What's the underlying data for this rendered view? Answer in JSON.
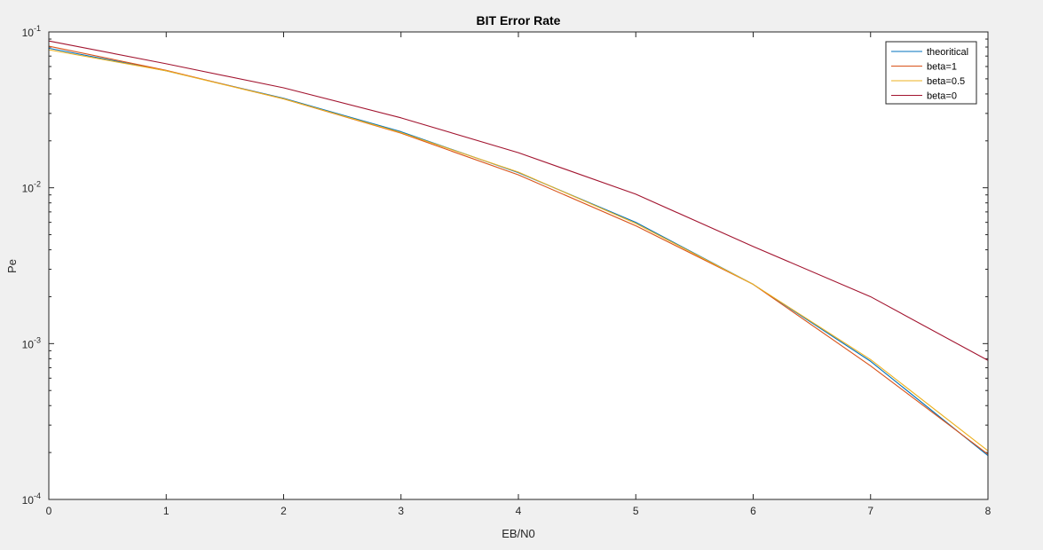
{
  "chart_data": {
    "type": "line",
    "title": "BIT Error Rate",
    "xlabel": "EB/N0",
    "ylabel": "Pe",
    "xlim": [
      0,
      8
    ],
    "ylim": [
      0.0001,
      0.1
    ],
    "yscale": "log",
    "x": [
      0,
      1,
      2,
      3,
      4,
      5,
      6,
      7,
      8
    ],
    "xticks": [
      "0",
      "1",
      "2",
      "3",
      "4",
      "5",
      "6",
      "7",
      "8"
    ],
    "yticks": [
      {
        "base": "10",
        "exp": "-4",
        "value": 0.0001
      },
      {
        "base": "10",
        "exp": "-3",
        "value": 0.001
      },
      {
        "base": "10",
        "exp": "-2",
        "value": 0.01
      },
      {
        "base": "10",
        "exp": "-1",
        "value": 0.1
      }
    ],
    "legend_position": "top-right",
    "series": [
      {
        "name": "theoritical",
        "color": "#0072bd",
        "values": [
          0.0786,
          0.0563,
          0.0375,
          0.0229,
          0.0125,
          0.006,
          0.0024,
          0.00077,
          0.000191
        ]
      },
      {
        "name": "beta=1",
        "color": "#d95319",
        "values": [
          0.081,
          0.0567,
          0.0372,
          0.0224,
          0.0121,
          0.0057,
          0.0024,
          0.00072,
          0.000195
        ]
      },
      {
        "name": "beta=0.5",
        "color": "#edb120",
        "values": [
          0.0768,
          0.0563,
          0.0372,
          0.0226,
          0.0126,
          0.0059,
          0.0024,
          0.00079,
          0.000205
        ]
      },
      {
        "name": "beta=0",
        "color": "#a2142f",
        "values": [
          0.0875,
          0.0625,
          0.0438,
          0.0281,
          0.0168,
          0.0091,
          0.0042,
          0.002,
          0.00078
        ]
      }
    ]
  }
}
